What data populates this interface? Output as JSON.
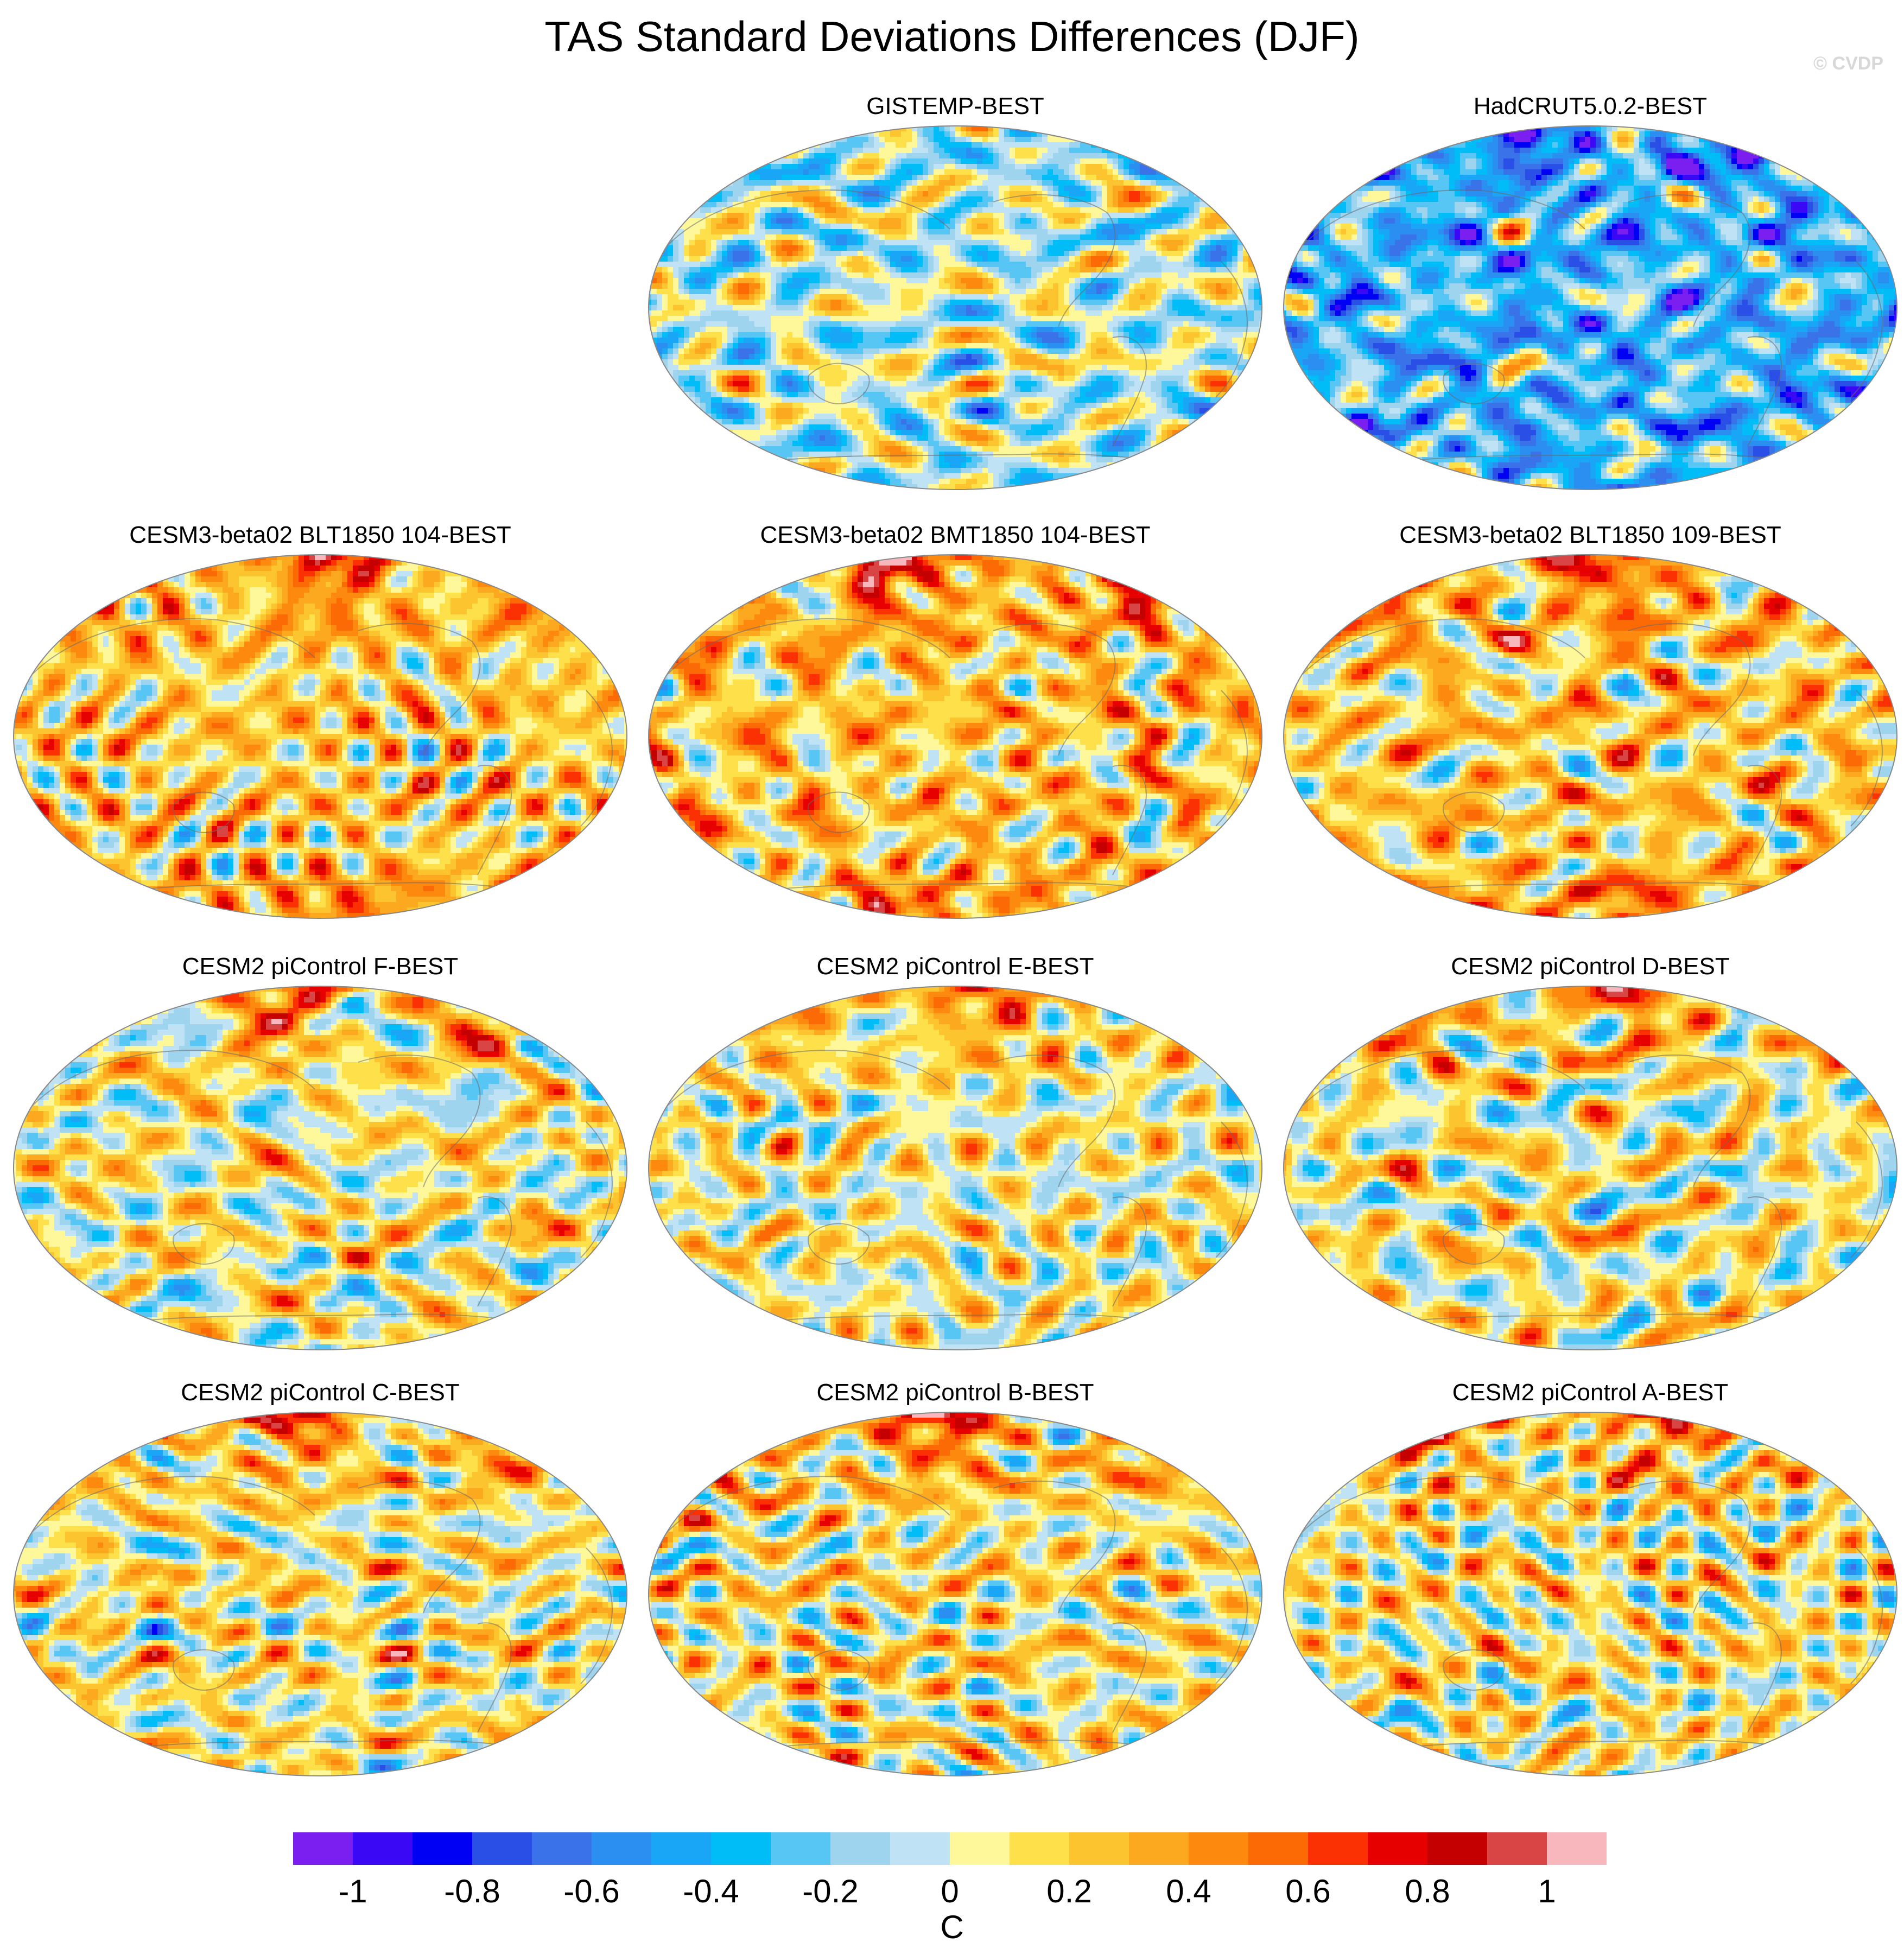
{
  "title": "TAS Standard Deviations Differences (DJF)",
  "credit": "© CVDP",
  "panels": [
    {
      "title": "",
      "blank": true
    },
    {
      "title": "GISTEMP-BEST",
      "bias": -0.05,
      "arctic": -0.1,
      "antarctic": -0.2,
      "seed": 3
    },
    {
      "title": "HadCRUT5.0.2-BEST",
      "bias": -0.35,
      "arctic": -0.6,
      "antarctic": -0.4,
      "seed": 7
    },
    {
      "title": "CESM3-beta02 BLT1850 104-BEST",
      "bias": 0.2,
      "arctic": 0.7,
      "antarctic": 0.5,
      "seed": 11
    },
    {
      "title": "CESM3-beta02 BMT1850 104-BEST",
      "bias": 0.22,
      "arctic": 0.75,
      "antarctic": 0.5,
      "seed": 13
    },
    {
      "title": "CESM3-beta02 BLT1850 109-BEST",
      "bias": 0.2,
      "arctic": 0.7,
      "antarctic": 0.55,
      "seed": 17
    },
    {
      "title": "CESM2 piControl F-BEST",
      "bias": 0.08,
      "arctic": 0.6,
      "antarctic": 0.0,
      "seed": 19
    },
    {
      "title": "CESM2 piControl E-BEST",
      "bias": 0.08,
      "arctic": 0.6,
      "antarctic": 0.0,
      "seed": 23
    },
    {
      "title": "CESM2 piControl D-BEST",
      "bias": 0.08,
      "arctic": 0.55,
      "antarctic": 0.0,
      "seed": 29
    },
    {
      "title": "CESM2 piControl C-BEST",
      "bias": 0.1,
      "arctic": 0.6,
      "antarctic": 0.05,
      "seed": 31
    },
    {
      "title": "CESM2 piControl B-BEST",
      "bias": 0.12,
      "arctic": 0.75,
      "antarctic": 0.05,
      "seed": 37
    },
    {
      "title": "CESM2 piControl A-BEST",
      "bias": 0.1,
      "arctic": 0.6,
      "antarctic": 0.05,
      "seed": 41
    }
  ],
  "colorbar": {
    "colors": [
      "#7b1ef0",
      "#3a08f5",
      "#0000f5",
      "#2a4fe6",
      "#3a72ea",
      "#2b8ff2",
      "#1aa6f7",
      "#00bdf7",
      "#57c6f5",
      "#9fd4ef",
      "#bfe3f4",
      "#fff89a",
      "#fde04a",
      "#fcc530",
      "#fda91f",
      "#fd8a0e",
      "#fc6a06",
      "#fb3003",
      "#e60000",
      "#c40000",
      "#d94444",
      "#f8b7bd"
    ],
    "ticks": [
      "-1",
      "-0.8",
      "-0.6",
      "-0.4",
      "-0.2",
      "0",
      "0.2",
      "0.4",
      "0.6",
      "0.8",
      "1"
    ],
    "tick_values": [
      -1,
      -0.8,
      -0.6,
      -0.4,
      -0.2,
      0,
      0.2,
      0.4,
      0.6,
      0.8,
      1
    ],
    "min": -1.1,
    "max": 1.1,
    "unit": "C"
  }
}
